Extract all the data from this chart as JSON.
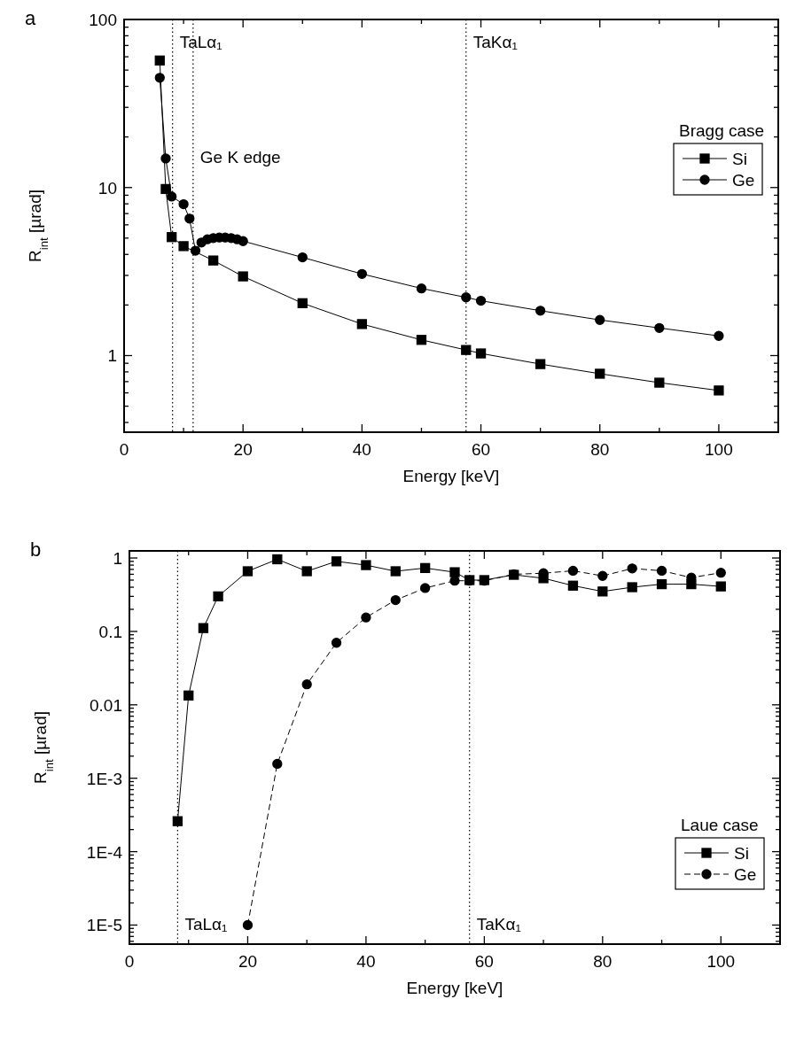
{
  "chart_data": [
    {
      "type": "line",
      "title": "a",
      "xlabel": "Energy [keV]",
      "ylabel": "R$_{int}$ [µrad]",
      "log": "y",
      "legend": "right",
      "legend_title": "Bragg case",
      "xlim": [
        0,
        110
      ],
      "ylim": [
        0.35,
        100
      ],
      "xticks": [
        0,
        {
          "value": 10,
          "label": null
        },
        20,
        {
          "value": 30,
          "label": null
        },
        40,
        {
          "value": 50,
          "label": null
        },
        60,
        {
          "value": 70,
          "label": null
        },
        80,
        {
          "value": 90,
          "label": null
        },
        100,
        {
          "value": 110,
          "label": null
        }
      ],
      "yticks": [
        {
          "value": 0.4,
          "label": null
        },
        {
          "value": 0.5,
          "label": null
        },
        {
          "value": 0.6,
          "label": null
        },
        {
          "value": 0.7,
          "label": null
        },
        {
          "value": 0.8,
          "label": null
        },
        {
          "value": 0.9,
          "label": null
        },
        1,
        {
          "value": 2,
          "label": null
        },
        {
          "value": 3,
          "label": null
        },
        {
          "value": 4,
          "label": null
        },
        {
          "value": 5,
          "label": null
        },
        {
          "value": 6,
          "label": null
        },
        {
          "value": 7,
          "label": null
        },
        {
          "value": 8,
          "label": null
        },
        {
          "value": 9,
          "label": null
        },
        10,
        {
          "value": 20,
          "label": null
        },
        {
          "value": 30,
          "label": null
        },
        {
          "value": 40,
          "label": null
        },
        {
          "value": 50,
          "label": null
        },
        {
          "value": 60,
          "label": null
        },
        {
          "value": 70,
          "label": null
        },
        {
          "value": 80,
          "label": null
        },
        {
          "value": 90,
          "label": null
        },
        100
      ],
      "ref_lines": [
        {
          "axis": "x",
          "value": 8.15,
          "label": "TaLα₁",
          "color": "#000000",
          "line_style": "dotted"
        },
        {
          "axis": "x",
          "value": 57.5,
          "label": "TaKα₁",
          "color": "#000000",
          "line_style": "dotted"
        },
        {
          "axis": "x",
          "value": 11.6,
          "label": "Ge K edge",
          "color": "#000000",
          "line_style": "dotted"
        }
      ],
      "series": [
        {
          "name": "Si",
          "color": "#000000",
          "marker": "square",
          "line_style": "solid",
          "x": [
            6,
            7,
            8,
            10,
            15,
            20,
            30,
            40,
            50,
            57.5,
            60,
            70,
            80,
            90,
            100
          ],
          "values": [
            57,
            9.8,
            5.07,
            4.48,
            3.68,
            2.96,
            2.05,
            1.54,
            1.24,
            1.08,
            1.03,
            0.89,
            0.78,
            0.69,
            0.62
          ]
        },
        {
          "name": "Ge",
          "color": "#000000",
          "marker": "circle",
          "line_style": "solid",
          "x": [
            6,
            7,
            8,
            10,
            11,
            12,
            13,
            14,
            15,
            16,
            17,
            18,
            19,
            20,
            30,
            40,
            50,
            57.5,
            60,
            70,
            80,
            90,
            100
          ],
          "values": [
            45,
            14.9,
            8.84,
            7.96,
            6.53,
            4.21,
            4.71,
            4.92,
            5.0,
            5.04,
            5.04,
            5.0,
            4.92,
            4.8,
            3.84,
            3.06,
            2.51,
            2.22,
            2.12,
            1.85,
            1.63,
            1.46,
            1.31
          ]
        }
      ]
    },
    {
      "type": "line",
      "title": "b",
      "xlabel": "Energy [keV]",
      "ylabel": "R$_{int}$ [µrad]",
      "log": "y",
      "legend": "bottom right",
      "legend_title": "Laue case",
      "xlim": [
        0,
        110
      ],
      "ylim": [
        5.5e-06,
        1.25
      ],
      "xticks": [
        0,
        {
          "value": 10,
          "label": null
        },
        20,
        {
          "value": 30,
          "label": null
        },
        40,
        {
          "value": 50,
          "label": null
        },
        60,
        {
          "value": 70,
          "label": null
        },
        80,
        {
          "value": 90,
          "label": null
        },
        100,
        {
          "value": 110,
          "label": null
        }
      ],
      "yticks": [
        {
          "value": 6e-06,
          "label": null
        },
        {
          "value": 7e-06,
          "label": null
        },
        {
          "value": 8e-06,
          "label": null
        },
        {
          "value": 9e-06,
          "label": null
        },
        {
          "value": 1e-05,
          "label": "1E-5"
        },
        {
          "value": 2e-05,
          "label": null
        },
        {
          "value": 3e-05,
          "label": null
        },
        {
          "value": 4e-05,
          "label": null
        },
        {
          "value": 5e-05,
          "label": null
        },
        {
          "value": 6e-05,
          "label": null
        },
        {
          "value": 7e-05,
          "label": null
        },
        {
          "value": 8e-05,
          "label": null
        },
        {
          "value": 9e-05,
          "label": null
        },
        {
          "value": 0.0001,
          "label": "1E-4"
        },
        {
          "value": 0.0002,
          "label": null
        },
        {
          "value": 0.0003,
          "label": null
        },
        {
          "value": 0.0004,
          "label": null
        },
        {
          "value": 0.0005,
          "label": null
        },
        {
          "value": 0.0006,
          "label": null
        },
        {
          "value": 0.0007,
          "label": null
        },
        {
          "value": 0.0008,
          "label": null
        },
        {
          "value": 0.0009,
          "label": null
        },
        {
          "value": 0.001,
          "label": "1E-3"
        },
        {
          "value": 0.002,
          "label": null
        },
        {
          "value": 0.003,
          "label": null
        },
        {
          "value": 0.004,
          "label": null
        },
        {
          "value": 0.005,
          "label": null
        },
        {
          "value": 0.006,
          "label": null
        },
        {
          "value": 0.007,
          "label": null
        },
        {
          "value": 0.008,
          "label": null
        },
        {
          "value": 0.009,
          "label": null
        },
        0.01,
        {
          "value": 0.02,
          "label": null
        },
        {
          "value": 0.03,
          "label": null
        },
        {
          "value": 0.04,
          "label": null
        },
        {
          "value": 0.05,
          "label": null
        },
        {
          "value": 0.06,
          "label": null
        },
        {
          "value": 0.07,
          "label": null
        },
        {
          "value": 0.08,
          "label": null
        },
        {
          "value": 0.09,
          "label": null
        },
        0.1,
        {
          "value": 0.2,
          "label": null
        },
        {
          "value": 0.3,
          "label": null
        },
        {
          "value": 0.4,
          "label": null
        },
        {
          "value": 0.5,
          "label": null
        },
        {
          "value": 0.6,
          "label": null
        },
        {
          "value": 0.7,
          "label": null
        },
        {
          "value": 0.8,
          "label": null
        },
        {
          "value": 0.9,
          "label": null
        },
        1
      ],
      "ref_lines": [
        {
          "axis": "x",
          "value": 8.15,
          "label": "TaLα₁",
          "color": "#000000",
          "line_style": "dotted"
        },
        {
          "axis": "x",
          "value": 57.5,
          "label": "TaKα₁",
          "color": "#000000",
          "line_style": "dotted"
        }
      ],
      "series": [
        {
          "name": "Si",
          "color": "#000000",
          "marker": "square",
          "line_style": "solid",
          "x": [
            8.15,
            10,
            12.5,
            15,
            20,
            25,
            30,
            35,
            40,
            45,
            50,
            55,
            57.5,
            60,
            65,
            70,
            75,
            80,
            85,
            90,
            95,
            100
          ],
          "values": [
            0.00026,
            0.0134,
            0.111,
            0.3,
            0.66,
            0.96,
            0.66,
            0.9,
            0.8,
            0.66,
            0.73,
            0.64,
            0.5,
            0.5,
            0.59,
            0.53,
            0.42,
            0.35,
            0.4,
            0.44,
            0.44,
            0.41
          ]
        },
        {
          "name": "Ge",
          "color": "#000000",
          "marker": "circle",
          "line_style": "dashed",
          "x": [
            20,
            25,
            30,
            35,
            40,
            45,
            50,
            55,
            57.5,
            60,
            65,
            70,
            75,
            80,
            85,
            90,
            95,
            100
          ],
          "values": [
            1e-05,
            0.00157,
            0.019,
            0.07,
            0.155,
            0.267,
            0.39,
            0.49,
            0.49,
            0.49,
            0.6,
            0.62,
            0.67,
            0.57,
            0.72,
            0.67,
            0.54,
            0.63
          ]
        }
      ]
    }
  ]
}
